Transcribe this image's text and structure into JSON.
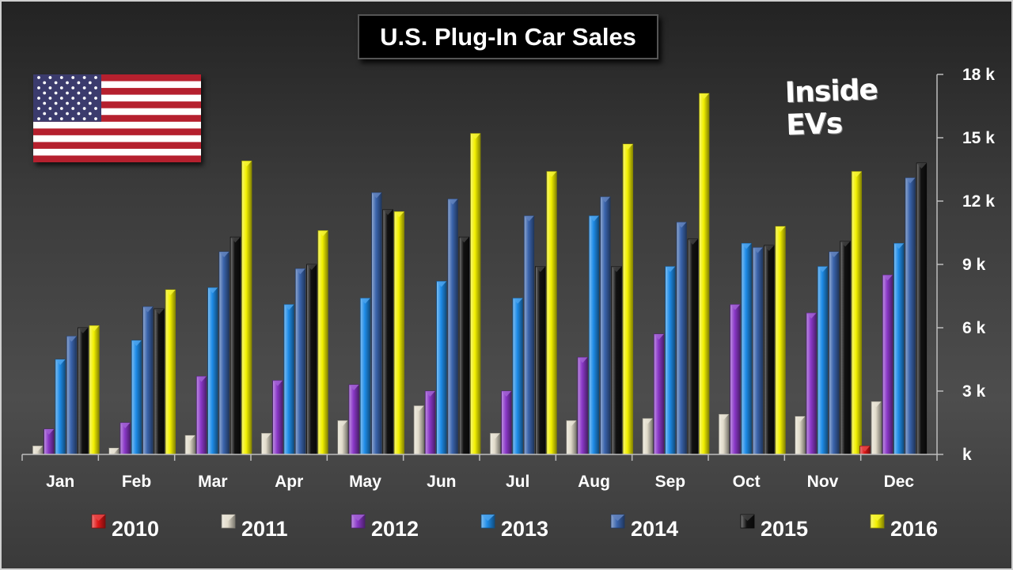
{
  "title": "U.S. Plug-In Car Sales",
  "watermark": "Inside EVs",
  "chart_data": {
    "type": "bar",
    "title": "U.S. Plug-In Car Sales",
    "xlabel": "",
    "ylabel": "",
    "ylim": [
      0,
      18000
    ],
    "y_axis_side": "right",
    "y_ticks": [
      0,
      3000,
      6000,
      9000,
      12000,
      15000,
      18000
    ],
    "y_tick_labels": [
      "k",
      "3 k",
      "6 k",
      "9 k",
      "12 k",
      "15 k",
      "18 k"
    ],
    "legend_position": "bottom",
    "categories": [
      "Jan",
      "Feb",
      "Mar",
      "Apr",
      "May",
      "Jun",
      "Jul",
      "Aug",
      "Sep",
      "Oct",
      "Nov",
      "Dec"
    ],
    "series": [
      {
        "name": "2010",
        "color": "#e01818",
        "values": [
          null,
          null,
          null,
          null,
          null,
          null,
          null,
          null,
          null,
          null,
          null,
          400
        ]
      },
      {
        "name": "2011",
        "color": "#e2dccb",
        "values": [
          400,
          300,
          900,
          1000,
          1600,
          2300,
          1000,
          1600,
          1700,
          1900,
          1800,
          2500
        ]
      },
      {
        "name": "2012",
        "color": "#8a38c8",
        "values": [
          1200,
          1500,
          3700,
          3500,
          3300,
          3000,
          3000,
          4600,
          5700,
          7100,
          6700,
          8500
        ]
      },
      {
        "name": "2013",
        "color": "#1e8ce8",
        "values": [
          4500,
          5400,
          7900,
          7100,
          7400,
          8200,
          7400,
          11300,
          8900,
          10000,
          8900,
          10000
        ]
      },
      {
        "name": "2014",
        "color": "#3a64ac",
        "values": [
          5600,
          7000,
          9600,
          8800,
          12400,
          12100,
          11300,
          12200,
          11000,
          9800,
          9600,
          13100
        ]
      },
      {
        "name": "2015",
        "color": "#111111",
        "values": [
          6000,
          6900,
          10300,
          9000,
          11600,
          10300,
          8900,
          8900,
          10200,
          9900,
          10100,
          13800
        ]
      },
      {
        "name": "2016",
        "color": "#f2f000",
        "values": [
          6100,
          7800,
          13900,
          10600,
          11500,
          15200,
          13400,
          14700,
          17100,
          10800,
          13400,
          null
        ]
      }
    ]
  }
}
